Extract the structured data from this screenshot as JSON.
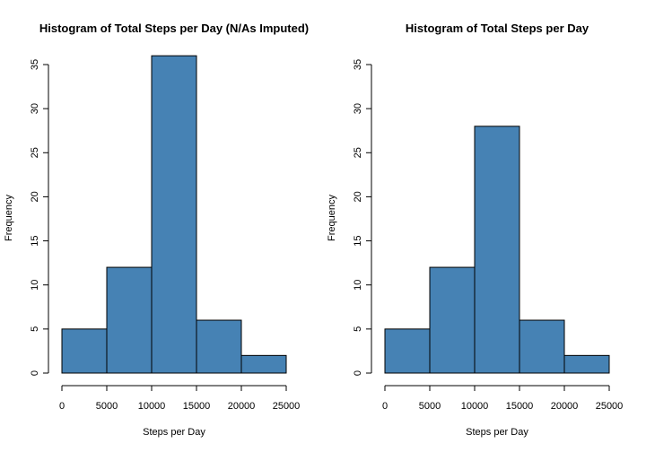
{
  "chart_data": [
    {
      "type": "bar",
      "title": "Histogram of Total Steps per Day (N/As Imputed)",
      "xlabel": "Steps per Day",
      "ylabel": "Frequency",
      "bins": [
        [
          0,
          5000
        ],
        [
          5000,
          10000
        ],
        [
          10000,
          15000
        ],
        [
          15000,
          20000
        ],
        [
          20000,
          25000
        ]
      ],
      "values": [
        5,
        12,
        36,
        6,
        2
      ],
      "xlim": [
        0,
        25000
      ],
      "ylim": [
        0,
        35
      ],
      "xticks": [
        "0",
        "5000",
        "10000",
        "15000",
        "20000",
        "25000"
      ],
      "yticks": [
        "0",
        "5",
        "10",
        "15",
        "20",
        "25",
        "30",
        "35"
      ],
      "color": "#4682B4",
      "grid": false
    },
    {
      "type": "bar",
      "title": "Histogram of Total Steps per Day",
      "xlabel": "Steps per Day",
      "ylabel": "Frequency",
      "bins": [
        [
          0,
          5000
        ],
        [
          5000,
          10000
        ],
        [
          10000,
          15000
        ],
        [
          15000,
          20000
        ],
        [
          20000,
          25000
        ]
      ],
      "values": [
        5,
        12,
        28,
        6,
        2
      ],
      "xlim": [
        0,
        25000
      ],
      "ylim": [
        0,
        35
      ],
      "xticks": [
        "0",
        "5000",
        "10000",
        "15000",
        "20000",
        "25000"
      ],
      "yticks": [
        "0",
        "5",
        "10",
        "15",
        "20",
        "25",
        "30",
        "35"
      ],
      "color": "#4682B4",
      "grid": false
    }
  ]
}
